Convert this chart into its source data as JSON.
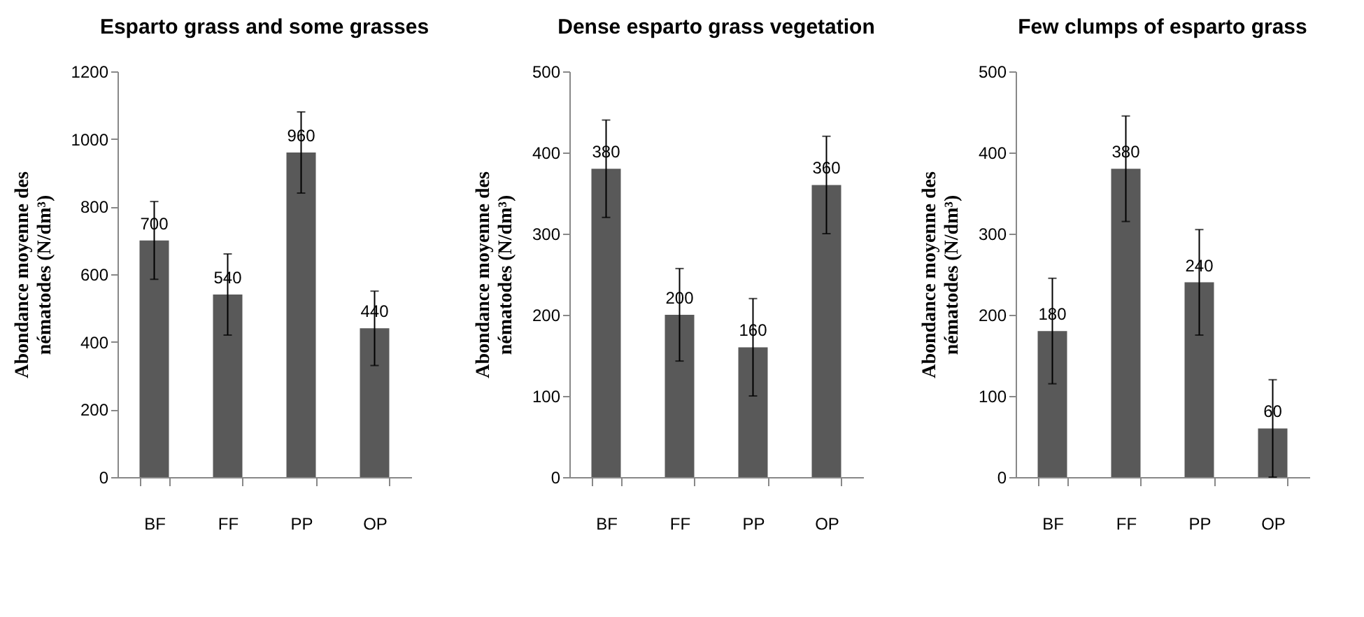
{
  "chart_data": [
    {
      "type": "bar",
      "title": "Esparto grass and some grasses",
      "ylabel": "Abondance moyenne des nématodes (N/dm³)",
      "categories": [
        "BF",
        "FF",
        "PP",
        "OP"
      ],
      "values": [
        700,
        540,
        960,
        440
      ],
      "errors": [
        115,
        120,
        120,
        110
      ],
      "color": "#595959",
      "ylim": [
        0,
        1200
      ],
      "yticks": [
        0,
        200,
        400,
        600,
        800,
        1000,
        1200
      ],
      "data_labels": true,
      "grid": false
    },
    {
      "type": "bar",
      "title": "Dense esparto grass vegetation",
      "ylabel": "Abondance moyenne des nématodes (N/dm³)",
      "categories": [
        "BF",
        "FF",
        "PP",
        "OP"
      ],
      "values": [
        380,
        200,
        160,
        360
      ],
      "errors": [
        60,
        57,
        60,
        60
      ],
      "color": "#595959",
      "ylim": [
        0,
        500
      ],
      "yticks": [
        0,
        100,
        200,
        300,
        400,
        500
      ],
      "data_labels": true,
      "grid": false
    },
    {
      "type": "bar",
      "title": "Few clumps of esparto grass",
      "ylabel": "Abondance moyenne des nématodes (N/dm³)",
      "categories": [
        "BF",
        "FF",
        "PP",
        "OP"
      ],
      "values": [
        180,
        380,
        240,
        60
      ],
      "errors": [
        65,
        65,
        65,
        60
      ],
      "color": "#595959",
      "ylim": [
        0,
        500
      ],
      "yticks": [
        0,
        100,
        200,
        300,
        400,
        500
      ],
      "data_labels": true,
      "grid": false
    }
  ]
}
